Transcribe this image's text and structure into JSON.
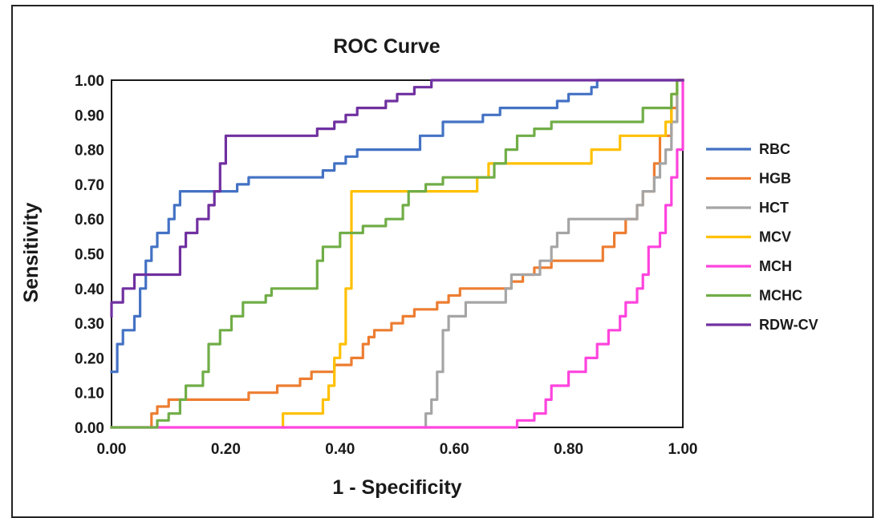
{
  "chart_data": {
    "type": "line",
    "title": "ROC Curve",
    "xlabel": "1 - Specificity",
    "ylabel": "Sensitivity",
    "xlim": [
      0,
      1
    ],
    "ylim": [
      0,
      1
    ],
    "x_ticks": [
      "0.00",
      "0.20",
      "0.40",
      "0.60",
      "0.80",
      "1.00"
    ],
    "y_ticks": [
      "0.00",
      "0.10",
      "0.20",
      "0.30",
      "0.40",
      "0.50",
      "0.60",
      "0.70",
      "0.80",
      "0.90",
      "1.00"
    ],
    "grid": false,
    "legend_position": "right",
    "series": [
      {
        "name": "RBC",
        "color": "#4472C4",
        "points": [
          [
            0,
            0.16
          ],
          [
            0.01,
            0.16
          ],
          [
            0.01,
            0.24
          ],
          [
            0.02,
            0.24
          ],
          [
            0.02,
            0.28
          ],
          [
            0.04,
            0.28
          ],
          [
            0.04,
            0.32
          ],
          [
            0.05,
            0.32
          ],
          [
            0.05,
            0.4
          ],
          [
            0.06,
            0.4
          ],
          [
            0.06,
            0.48
          ],
          [
            0.07,
            0.48
          ],
          [
            0.07,
            0.52
          ],
          [
            0.08,
            0.52
          ],
          [
            0.08,
            0.56
          ],
          [
            0.1,
            0.56
          ],
          [
            0.1,
            0.6
          ],
          [
            0.11,
            0.6
          ],
          [
            0.11,
            0.64
          ],
          [
            0.12,
            0.64
          ],
          [
            0.12,
            0.68
          ],
          [
            0.22,
            0.68
          ],
          [
            0.22,
            0.7
          ],
          [
            0.24,
            0.7
          ],
          [
            0.24,
            0.72
          ],
          [
            0.37,
            0.72
          ],
          [
            0.37,
            0.74
          ],
          [
            0.39,
            0.74
          ],
          [
            0.39,
            0.76
          ],
          [
            0.41,
            0.76
          ],
          [
            0.41,
            0.78
          ],
          [
            0.43,
            0.78
          ],
          [
            0.43,
            0.8
          ],
          [
            0.54,
            0.8
          ],
          [
            0.54,
            0.84
          ],
          [
            0.58,
            0.84
          ],
          [
            0.58,
            0.88
          ],
          [
            0.65,
            0.88
          ],
          [
            0.65,
            0.9
          ],
          [
            0.68,
            0.9
          ],
          [
            0.68,
            0.92
          ],
          [
            0.78,
            0.92
          ],
          [
            0.78,
            0.94
          ],
          [
            0.8,
            0.94
          ],
          [
            0.8,
            0.96
          ],
          [
            0.84,
            0.96
          ],
          [
            0.84,
            0.98
          ],
          [
            0.85,
            0.98
          ],
          [
            0.85,
            1.0
          ],
          [
            1.0,
            1.0
          ]
        ]
      },
      {
        "name": "HGB",
        "color": "#ED7D31",
        "points": [
          [
            0.07,
            0
          ],
          [
            0.07,
            0.04
          ],
          [
            0.08,
            0.04
          ],
          [
            0.08,
            0.06
          ],
          [
            0.1,
            0.06
          ],
          [
            0.1,
            0.08
          ],
          [
            0.24,
            0.08
          ],
          [
            0.24,
            0.1
          ],
          [
            0.29,
            0.1
          ],
          [
            0.29,
            0.12
          ],
          [
            0.33,
            0.12
          ],
          [
            0.33,
            0.14
          ],
          [
            0.35,
            0.14
          ],
          [
            0.35,
            0.16
          ],
          [
            0.39,
            0.16
          ],
          [
            0.39,
            0.18
          ],
          [
            0.42,
            0.18
          ],
          [
            0.42,
            0.2
          ],
          [
            0.44,
            0.2
          ],
          [
            0.44,
            0.24
          ],
          [
            0.45,
            0.24
          ],
          [
            0.45,
            0.26
          ],
          [
            0.46,
            0.26
          ],
          [
            0.46,
            0.28
          ],
          [
            0.49,
            0.28
          ],
          [
            0.49,
            0.3
          ],
          [
            0.51,
            0.3
          ],
          [
            0.51,
            0.32
          ],
          [
            0.53,
            0.32
          ],
          [
            0.53,
            0.34
          ],
          [
            0.57,
            0.34
          ],
          [
            0.57,
            0.36
          ],
          [
            0.59,
            0.36
          ],
          [
            0.59,
            0.38
          ],
          [
            0.61,
            0.38
          ],
          [
            0.61,
            0.4
          ],
          [
            0.7,
            0.4
          ],
          [
            0.7,
            0.42
          ],
          [
            0.72,
            0.42
          ],
          [
            0.72,
            0.44
          ],
          [
            0.74,
            0.44
          ],
          [
            0.74,
            0.46
          ],
          [
            0.77,
            0.46
          ],
          [
            0.77,
            0.48
          ],
          [
            0.86,
            0.48
          ],
          [
            0.86,
            0.52
          ],
          [
            0.88,
            0.52
          ],
          [
            0.88,
            0.56
          ],
          [
            0.9,
            0.56
          ],
          [
            0.9,
            0.6
          ],
          [
            0.92,
            0.6
          ],
          [
            0.92,
            0.64
          ],
          [
            0.93,
            0.64
          ],
          [
            0.93,
            0.68
          ],
          [
            0.95,
            0.68
          ],
          [
            0.95,
            0.76
          ],
          [
            0.96,
            0.76
          ],
          [
            0.96,
            0.84
          ],
          [
            0.98,
            0.84
          ],
          [
            0.98,
            0.92
          ],
          [
            0.99,
            0.92
          ],
          [
            0.99,
            1.0
          ],
          [
            1.0,
            1.0
          ]
        ]
      },
      {
        "name": "HCT",
        "color": "#A5A5A5",
        "points": [
          [
            0.55,
            0
          ],
          [
            0.55,
            0.04
          ],
          [
            0.56,
            0.04
          ],
          [
            0.56,
            0.08
          ],
          [
            0.57,
            0.08
          ],
          [
            0.57,
            0.16
          ],
          [
            0.58,
            0.16
          ],
          [
            0.58,
            0.28
          ],
          [
            0.59,
            0.28
          ],
          [
            0.59,
            0.32
          ],
          [
            0.62,
            0.32
          ],
          [
            0.62,
            0.36
          ],
          [
            0.69,
            0.36
          ],
          [
            0.69,
            0.4
          ],
          [
            0.7,
            0.4
          ],
          [
            0.7,
            0.44
          ],
          [
            0.75,
            0.44
          ],
          [
            0.75,
            0.48
          ],
          [
            0.77,
            0.48
          ],
          [
            0.77,
            0.52
          ],
          [
            0.78,
            0.52
          ],
          [
            0.78,
            0.56
          ],
          [
            0.8,
            0.56
          ],
          [
            0.8,
            0.6
          ],
          [
            0.92,
            0.6
          ],
          [
            0.92,
            0.64
          ],
          [
            0.93,
            0.64
          ],
          [
            0.93,
            0.68
          ],
          [
            0.95,
            0.68
          ],
          [
            0.95,
            0.72
          ],
          [
            0.96,
            0.72
          ],
          [
            0.96,
            0.76
          ],
          [
            0.97,
            0.76
          ],
          [
            0.97,
            0.8
          ],
          [
            0.98,
            0.8
          ],
          [
            0.98,
            0.88
          ],
          [
            0.99,
            0.88
          ],
          [
            0.99,
            1.0
          ],
          [
            1.0,
            1.0
          ]
        ]
      },
      {
        "name": "MCV",
        "color": "#FFC000",
        "points": [
          [
            0.3,
            0
          ],
          [
            0.3,
            0.04
          ],
          [
            0.37,
            0.04
          ],
          [
            0.37,
            0.08
          ],
          [
            0.38,
            0.08
          ],
          [
            0.38,
            0.12
          ],
          [
            0.39,
            0.12
          ],
          [
            0.39,
            0.2
          ],
          [
            0.4,
            0.2
          ],
          [
            0.4,
            0.24
          ],
          [
            0.41,
            0.24
          ],
          [
            0.41,
            0.4
          ],
          [
            0.42,
            0.4
          ],
          [
            0.42,
            0.68
          ],
          [
            0.64,
            0.68
          ],
          [
            0.64,
            0.72
          ],
          [
            0.66,
            0.72
          ],
          [
            0.66,
            0.76
          ],
          [
            0.84,
            0.76
          ],
          [
            0.84,
            0.8
          ],
          [
            0.89,
            0.8
          ],
          [
            0.89,
            0.84
          ],
          [
            0.97,
            0.84
          ],
          [
            0.97,
            0.88
          ],
          [
            0.98,
            0.88
          ],
          [
            0.98,
            0.96
          ],
          [
            0.99,
            0.96
          ],
          [
            0.99,
            1.0
          ],
          [
            1.0,
            1.0
          ]
        ]
      },
      {
        "name": "MCH",
        "color": "#FF44DD",
        "points": [
          [
            0,
            0
          ],
          [
            0.71,
            0
          ],
          [
            0.71,
            0.02
          ],
          [
            0.74,
            0.02
          ],
          [
            0.74,
            0.04
          ],
          [
            0.76,
            0.04
          ],
          [
            0.76,
            0.08
          ],
          [
            0.77,
            0.08
          ],
          [
            0.77,
            0.12
          ],
          [
            0.8,
            0.12
          ],
          [
            0.8,
            0.16
          ],
          [
            0.83,
            0.16
          ],
          [
            0.83,
            0.2
          ],
          [
            0.85,
            0.2
          ],
          [
            0.85,
            0.24
          ],
          [
            0.87,
            0.24
          ],
          [
            0.87,
            0.28
          ],
          [
            0.89,
            0.28
          ],
          [
            0.89,
            0.32
          ],
          [
            0.9,
            0.32
          ],
          [
            0.9,
            0.36
          ],
          [
            0.92,
            0.36
          ],
          [
            0.92,
            0.4
          ],
          [
            0.93,
            0.4
          ],
          [
            0.93,
            0.44
          ],
          [
            0.94,
            0.44
          ],
          [
            0.94,
            0.52
          ],
          [
            0.96,
            0.52
          ],
          [
            0.96,
            0.56
          ],
          [
            0.97,
            0.56
          ],
          [
            0.97,
            0.64
          ],
          [
            0.98,
            0.64
          ],
          [
            0.98,
            0.72
          ],
          [
            0.99,
            0.72
          ],
          [
            0.99,
            0.8
          ],
          [
            1.0,
            0.8
          ],
          [
            1.0,
            1.0
          ]
        ]
      },
      {
        "name": "MCHC",
        "color": "#70AD47",
        "points": [
          [
            0,
            0
          ],
          [
            0.08,
            0
          ],
          [
            0.08,
            0.02
          ],
          [
            0.1,
            0.02
          ],
          [
            0.1,
            0.04
          ],
          [
            0.12,
            0.04
          ],
          [
            0.12,
            0.08
          ],
          [
            0.13,
            0.08
          ],
          [
            0.13,
            0.12
          ],
          [
            0.16,
            0.12
          ],
          [
            0.16,
            0.16
          ],
          [
            0.17,
            0.16
          ],
          [
            0.17,
            0.24
          ],
          [
            0.19,
            0.24
          ],
          [
            0.19,
            0.28
          ],
          [
            0.21,
            0.28
          ],
          [
            0.21,
            0.32
          ],
          [
            0.23,
            0.32
          ],
          [
            0.23,
            0.36
          ],
          [
            0.27,
            0.36
          ],
          [
            0.27,
            0.38
          ],
          [
            0.28,
            0.38
          ],
          [
            0.28,
            0.4
          ],
          [
            0.36,
            0.4
          ],
          [
            0.36,
            0.48
          ],
          [
            0.37,
            0.48
          ],
          [
            0.37,
            0.52
          ],
          [
            0.4,
            0.52
          ],
          [
            0.4,
            0.56
          ],
          [
            0.44,
            0.56
          ],
          [
            0.44,
            0.58
          ],
          [
            0.48,
            0.58
          ],
          [
            0.48,
            0.6
          ],
          [
            0.51,
            0.6
          ],
          [
            0.51,
            0.64
          ],
          [
            0.52,
            0.64
          ],
          [
            0.52,
            0.68
          ],
          [
            0.55,
            0.68
          ],
          [
            0.55,
            0.7
          ],
          [
            0.58,
            0.7
          ],
          [
            0.58,
            0.72
          ],
          [
            0.67,
            0.72
          ],
          [
            0.67,
            0.76
          ],
          [
            0.69,
            0.76
          ],
          [
            0.69,
            0.8
          ],
          [
            0.71,
            0.8
          ],
          [
            0.71,
            0.84
          ],
          [
            0.74,
            0.84
          ],
          [
            0.74,
            0.86
          ],
          [
            0.77,
            0.86
          ],
          [
            0.77,
            0.88
          ],
          [
            0.93,
            0.88
          ],
          [
            0.93,
            0.92
          ],
          [
            0.98,
            0.92
          ],
          [
            0.98,
            0.96
          ],
          [
            0.99,
            0.96
          ],
          [
            0.99,
            1.0
          ],
          [
            1.0,
            1.0
          ]
        ]
      },
      {
        "name": "RDW-CV",
        "color": "#7030A0",
        "points": [
          [
            0,
            0.32
          ],
          [
            0,
            0.36
          ],
          [
            0.02,
            0.36
          ],
          [
            0.02,
            0.4
          ],
          [
            0.04,
            0.4
          ],
          [
            0.04,
            0.44
          ],
          [
            0.12,
            0.44
          ],
          [
            0.12,
            0.52
          ],
          [
            0.13,
            0.52
          ],
          [
            0.13,
            0.56
          ],
          [
            0.15,
            0.56
          ],
          [
            0.15,
            0.6
          ],
          [
            0.17,
            0.6
          ],
          [
            0.17,
            0.64
          ],
          [
            0.18,
            0.64
          ],
          [
            0.18,
            0.68
          ],
          [
            0.19,
            0.68
          ],
          [
            0.19,
            0.76
          ],
          [
            0.2,
            0.76
          ],
          [
            0.2,
            0.84
          ],
          [
            0.36,
            0.84
          ],
          [
            0.36,
            0.86
          ],
          [
            0.39,
            0.86
          ],
          [
            0.39,
            0.88
          ],
          [
            0.41,
            0.88
          ],
          [
            0.41,
            0.9
          ],
          [
            0.43,
            0.9
          ],
          [
            0.43,
            0.92
          ],
          [
            0.48,
            0.92
          ],
          [
            0.48,
            0.94
          ],
          [
            0.5,
            0.94
          ],
          [
            0.5,
            0.96
          ],
          [
            0.53,
            0.96
          ],
          [
            0.53,
            0.98
          ],
          [
            0.56,
            0.98
          ],
          [
            0.56,
            1.0
          ],
          [
            1.0,
            1.0
          ]
        ]
      }
    ]
  }
}
